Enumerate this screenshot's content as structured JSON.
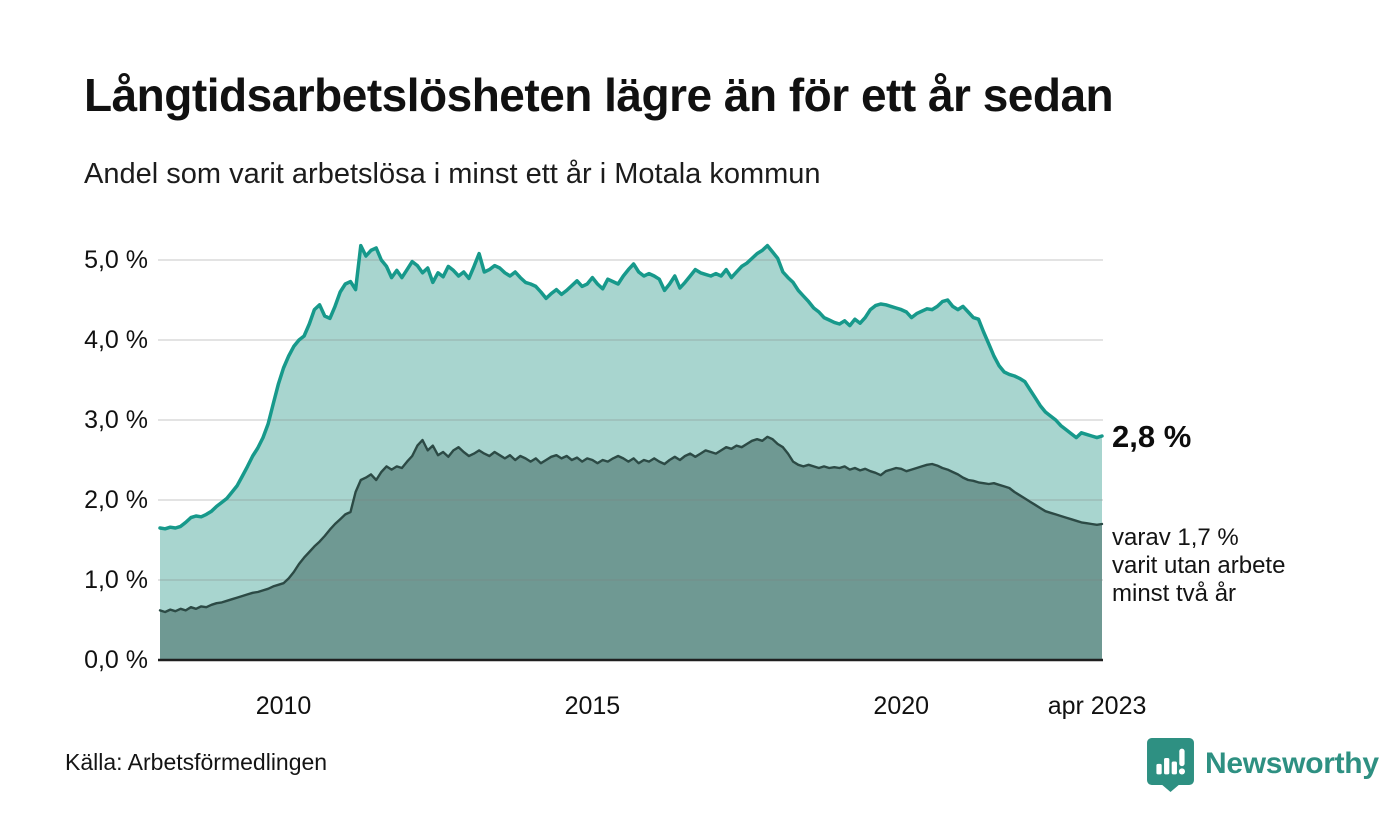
{
  "header": {
    "title": "Långtidsarbetslösheten lägre än för ett år sedan",
    "subtitle": "Andel som varit arbetslösa i minst ett år i Motala kommun"
  },
  "annotations": {
    "total_end_label": "2,8 %",
    "sub_lines": [
      "varav 1,7 %",
      "varit utan arbete",
      "minst två år"
    ]
  },
  "footer": {
    "source": "Källa: Arbetsförmedlingen",
    "brand": "Newsworthy"
  },
  "colors": {
    "accent_teal": "#17998b",
    "light_fill": "#a8d5cf",
    "dark_line": "#2c4a45",
    "dark_fill": "#6f9993",
    "gridline": "rgba(128,128,128,0.22)",
    "baseline": "#1f1f1f",
    "brand_teal": "#2e9082"
  },
  "chart_data": {
    "type": "area",
    "title": "Långtidsarbetslösheten lägre än för ett år sedan",
    "subtitle": "Andel som varit arbetslösa i minst ett år i Motala kommun",
    "unit": "%",
    "x_start_year": 2008,
    "x_step_months": 1,
    "x_end": "apr 2023",
    "ylim": [
      0,
      5.5
    ],
    "grid": true,
    "yticks": [
      {
        "v": 0,
        "label": "0,0 %"
      },
      {
        "v": 1,
        "label": "1,0 %"
      },
      {
        "v": 2,
        "label": "2,0 %"
      },
      {
        "v": 3,
        "label": "3,0 %"
      },
      {
        "v": 4,
        "label": "4,0 %"
      },
      {
        "v": 5,
        "label": "5,0 %"
      }
    ],
    "xticks": [
      {
        "v": 2010.0,
        "label": "2010"
      },
      {
        "v": 2015.0,
        "label": "2015"
      },
      {
        "v": 2020.0,
        "label": "2020"
      },
      {
        "v": 2023.17,
        "label": "apr 2023"
      }
    ],
    "series": [
      {
        "name": "Arbetslösa minst ett år",
        "end_value": 2.8,
        "values": [
          1.65,
          1.64,
          1.66,
          1.65,
          1.67,
          1.72,
          1.78,
          1.8,
          1.79,
          1.82,
          1.86,
          1.92,
          1.97,
          2.02,
          2.1,
          2.18,
          2.3,
          2.42,
          2.55,
          2.65,
          2.78,
          2.95,
          3.2,
          3.45,
          3.65,
          3.8,
          3.92,
          4.0,
          4.05,
          4.2,
          4.38,
          4.44,
          4.3,
          4.27,
          4.42,
          4.6,
          4.7,
          4.73,
          4.63,
          5.18,
          5.05,
          5.12,
          5.15,
          5.0,
          4.92,
          4.78,
          4.87,
          4.78,
          4.88,
          4.98,
          4.93,
          4.84,
          4.9,
          4.72,
          4.84,
          4.79,
          4.92,
          4.87,
          4.8,
          4.85,
          4.77,
          4.92,
          5.08,
          4.85,
          4.88,
          4.93,
          4.9,
          4.84,
          4.8,
          4.85,
          4.78,
          4.72,
          4.7,
          4.67,
          4.6,
          4.52,
          4.58,
          4.63,
          4.57,
          4.62,
          4.68,
          4.74,
          4.67,
          4.7,
          4.78,
          4.7,
          4.64,
          4.76,
          4.73,
          4.7,
          4.8,
          4.88,
          4.95,
          4.85,
          4.8,
          4.83,
          4.8,
          4.76,
          4.62,
          4.7,
          4.8,
          4.65,
          4.72,
          4.8,
          4.88,
          4.84,
          4.82,
          4.8,
          4.83,
          4.8,
          4.88,
          4.78,
          4.85,
          4.92,
          4.96,
          5.02,
          5.08,
          5.12,
          5.18,
          5.1,
          5.02,
          4.85,
          4.78,
          4.72,
          4.62,
          4.55,
          4.48,
          4.4,
          4.35,
          4.28,
          4.25,
          4.22,
          4.2,
          4.24,
          4.18,
          4.26,
          4.21,
          4.28,
          4.38,
          4.43,
          4.45,
          4.44,
          4.42,
          4.4,
          4.38,
          4.35,
          4.28,
          4.33,
          4.36,
          4.39,
          4.38,
          4.42,
          4.48,
          4.5,
          4.42,
          4.38,
          4.42,
          4.35,
          4.28,
          4.26,
          4.1,
          3.95,
          3.8,
          3.68,
          3.6,
          3.57,
          3.55,
          3.52,
          3.48,
          3.38,
          3.28,
          3.18,
          3.1,
          3.05,
          3.0,
          2.93,
          2.88,
          2.83,
          2.78,
          2.84,
          2.82,
          2.8,
          2.78,
          2.8
        ]
      },
      {
        "name": "varav utan arbete minst två år",
        "end_value": 1.7,
        "values": [
          0.62,
          0.6,
          0.63,
          0.61,
          0.64,
          0.62,
          0.66,
          0.64,
          0.67,
          0.66,
          0.69,
          0.71,
          0.72,
          0.74,
          0.76,
          0.78,
          0.8,
          0.82,
          0.84,
          0.85,
          0.87,
          0.89,
          0.92,
          0.94,
          0.96,
          1.02,
          1.1,
          1.2,
          1.28,
          1.35,
          1.42,
          1.48,
          1.55,
          1.63,
          1.7,
          1.76,
          1.82,
          1.85,
          2.1,
          2.25,
          2.28,
          2.32,
          2.25,
          2.35,
          2.42,
          2.38,
          2.42,
          2.4,
          2.48,
          2.55,
          2.68,
          2.75,
          2.62,
          2.68,
          2.56,
          2.6,
          2.54,
          2.62,
          2.66,
          2.6,
          2.55,
          2.58,
          2.62,
          2.58,
          2.55,
          2.6,
          2.56,
          2.52,
          2.56,
          2.5,
          2.55,
          2.52,
          2.48,
          2.52,
          2.46,
          2.5,
          2.54,
          2.56,
          2.52,
          2.55,
          2.5,
          2.53,
          2.48,
          2.52,
          2.5,
          2.46,
          2.5,
          2.48,
          2.52,
          2.55,
          2.52,
          2.48,
          2.52,
          2.46,
          2.5,
          2.48,
          2.52,
          2.48,
          2.45,
          2.5,
          2.54,
          2.5,
          2.55,
          2.58,
          2.54,
          2.58,
          2.62,
          2.6,
          2.58,
          2.62,
          2.66,
          2.64,
          2.68,
          2.66,
          2.7,
          2.74,
          2.76,
          2.74,
          2.79,
          2.76,
          2.7,
          2.66,
          2.58,
          2.48,
          2.44,
          2.42,
          2.44,
          2.42,
          2.4,
          2.42,
          2.4,
          2.41,
          2.4,
          2.42,
          2.38,
          2.4,
          2.37,
          2.39,
          2.36,
          2.34,
          2.31,
          2.36,
          2.38,
          2.4,
          2.39,
          2.36,
          2.38,
          2.4,
          2.42,
          2.44,
          2.45,
          2.43,
          2.4,
          2.38,
          2.35,
          2.32,
          2.28,
          2.25,
          2.24,
          2.22,
          2.21,
          2.2,
          2.21,
          2.19,
          2.17,
          2.15,
          2.1,
          2.06,
          2.02,
          1.98,
          1.94,
          1.9,
          1.86,
          1.84,
          1.82,
          1.8,
          1.78,
          1.76,
          1.74,
          1.72,
          1.71,
          1.7,
          1.69,
          1.7
        ]
      }
    ]
  }
}
